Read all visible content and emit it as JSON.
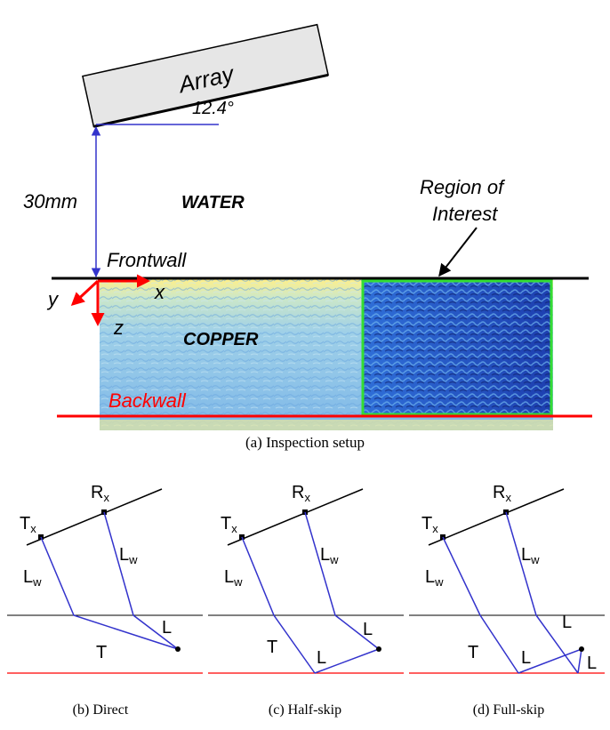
{
  "setup": {
    "array_label": "Array",
    "angle_label": "12.4°",
    "height_label": "30mm",
    "water_label": "WATER",
    "roi_label_line1": "Region of",
    "roi_label_line2": "Interest",
    "frontwall_label": "Frontwall",
    "copper_label": "COPPER",
    "backwall_label": "Backwall",
    "axis_x": "x",
    "axis_y": "y",
    "axis_z": "z",
    "caption": "(a) Inspection setup"
  },
  "paths": {
    "tx_label": "T",
    "tx_sub": "x",
    "rx_label": "R",
    "rx_sub": "x",
    "lw_label": "L",
    "lw_sub": "w",
    "t_label": "T",
    "l_label": "L",
    "captions": [
      "(b) Direct",
      "(c) Half-skip",
      "(d) Full-skip"
    ]
  },
  "colors": {
    "blue": "#3333cc",
    "red": "#ff0000",
    "green": "#33dd33",
    "black": "#000000"
  }
}
